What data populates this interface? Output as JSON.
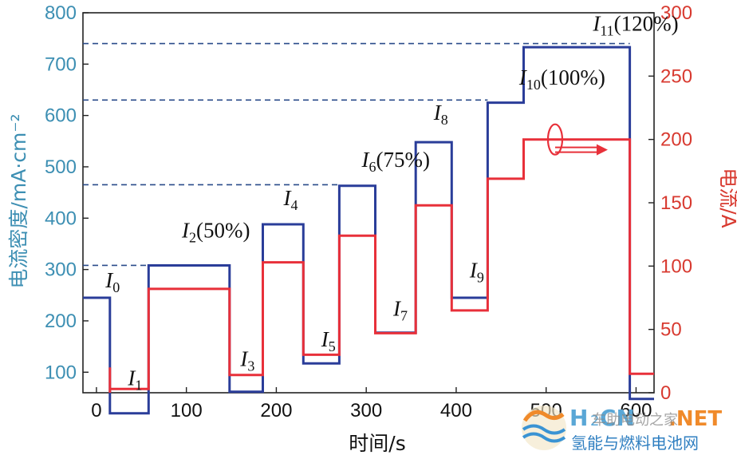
{
  "chart_data": {
    "type": "line",
    "x_label": "时间/s",
    "y_left_label": "电流密度/mA·cm⁻²",
    "y_right_label": "电流/A",
    "x_ticks": [
      0,
      100,
      200,
      300,
      400,
      500,
      600
    ],
    "y_left_ticks": [
      100,
      200,
      300,
      400,
      500,
      600,
      700,
      800
    ],
    "y_right_ticks": [
      0,
      50,
      100,
      150,
      200,
      250,
      300
    ],
    "xlim": [
      -15,
      620
    ],
    "y_left_lim": [
      60,
      800
    ],
    "y_right_lim": [
      0,
      300
    ],
    "colors": {
      "current_density": "#2a3d99",
      "current": "#e8303a",
      "left_axis": "#3d8fb3",
      "right_axis": "#d83a30",
      "ref_line": "#2a4b8a"
    },
    "series": [
      {
        "axis": "left",
        "points": [
          [
            -15,
            245
          ],
          [
            15,
            245
          ],
          [
            15,
            20
          ],
          [
            58,
            20
          ],
          [
            58,
            308
          ],
          [
            148,
            308
          ],
          [
            148,
            62
          ],
          [
            185,
            62
          ],
          [
            185,
            388
          ],
          [
            230,
            388
          ],
          [
            230,
            117
          ],
          [
            270,
            117
          ],
          [
            270,
            463
          ],
          [
            310,
            463
          ],
          [
            310,
            177
          ],
          [
            355,
            177
          ],
          [
            355,
            548
          ],
          [
            395,
            548
          ],
          [
            395,
            245
          ],
          [
            435,
            245
          ],
          [
            435,
            625
          ],
          [
            475,
            625
          ],
          [
            475,
            733
          ],
          [
            593,
            733
          ],
          [
            593,
            48
          ],
          [
            620,
            48
          ]
        ]
      },
      {
        "axis": "right",
        "points": [
          [
            15,
            0
          ],
          [
            15,
            20
          ],
          [
            15,
            3
          ],
          [
            58,
            3
          ],
          [
            58,
            82
          ],
          [
            148,
            82
          ],
          [
            148,
            14
          ],
          [
            185,
            14
          ],
          [
            185,
            103
          ],
          [
            230,
            103
          ],
          [
            230,
            30
          ],
          [
            270,
            30
          ],
          [
            270,
            124
          ],
          [
            310,
            124
          ],
          [
            310,
            47
          ],
          [
            355,
            47
          ],
          [
            355,
            148
          ],
          [
            395,
            148
          ],
          [
            395,
            65
          ],
          [
            435,
            65
          ],
          [
            435,
            169
          ],
          [
            475,
            169
          ],
          [
            475,
            200
          ],
          [
            593,
            200
          ],
          [
            593,
            15
          ],
          [
            620,
            15
          ]
        ]
      }
    ],
    "reference_lines": [
      {
        "y": 308,
        "x_end": 58
      },
      {
        "y": 465,
        "x_end": 270
      },
      {
        "y": 630,
        "x_end": 435
      },
      {
        "y": 740,
        "x_end": 593
      }
    ],
    "annotations": [
      {
        "sym": "I",
        "sub": "0",
        "extra": "",
        "x": 10,
        "y": 265
      },
      {
        "sym": "I",
        "sub": "1",
        "extra": "",
        "x": 35,
        "y": 75
      },
      {
        "sym": "I",
        "sub": "2",
        "extra": "(50%)",
        "x": 95,
        "y": 362
      },
      {
        "sym": "I",
        "sub": "3",
        "extra": "",
        "x": 160,
        "y": 112
      },
      {
        "sym": "I",
        "sub": "4",
        "extra": "",
        "x": 208,
        "y": 425
      },
      {
        "sym": "I",
        "sub": "5",
        "extra": "",
        "x": 250,
        "y": 150
      },
      {
        "sym": "I",
        "sub": "6",
        "extra": "(75%)",
        "x": 295,
        "y": 500
      },
      {
        "sym": "I",
        "sub": "7",
        "extra": "",
        "x": 330,
        "y": 210
      },
      {
        "sym": "I",
        "sub": "8",
        "extra": "",
        "x": 375,
        "y": 592
      },
      {
        "sym": "I",
        "sub": "9",
        "extra": "",
        "x": 415,
        "y": 285
      },
      {
        "sym": "I",
        "sub": "10",
        "extra": "(100%)",
        "x": 470,
        "y": 660
      },
      {
        "sym": "I",
        "sub": "11",
        "extra": "(120%)",
        "x": 552,
        "y": 765
      }
    ],
    "grid": false
  },
  "watermark": {
    "brand_left": "H",
    "brand_dots": "2",
    "brand_mid": "CN",
    "brand_net": ".NET",
    "overlay_text": "车助电动之家",
    "subtitle": "氢能与燃料电池网"
  }
}
